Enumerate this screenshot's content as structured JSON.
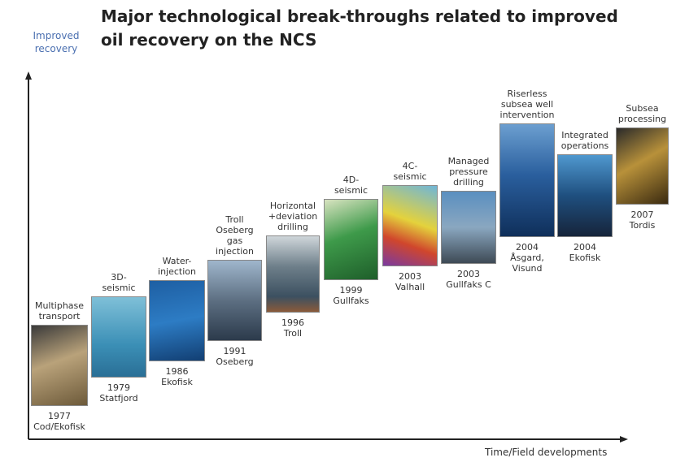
{
  "title": [
    "Major technological break-throughs related to improved",
    "oil recovery on the NCS"
  ],
  "y_axis_label": [
    "Improved",
    "recovery"
  ],
  "x_axis_label": "Time/Field developments",
  "steps": [
    {
      "top": [
        "Multiphase",
        "transport"
      ],
      "bottom": [
        "1977",
        "Cod/Ekofisk"
      ]
    },
    {
      "top": [
        "3D-",
        "seismic"
      ],
      "bottom": [
        "1979",
        "Statfjord"
      ]
    },
    {
      "top": [
        "Water-",
        "injection"
      ],
      "bottom": [
        "1986",
        "Ekofisk"
      ]
    },
    {
      "top": [
        "Troll",
        "Oseberg",
        "gas",
        "injection"
      ],
      "bottom": [
        "1991",
        "Oseberg"
      ]
    },
    {
      "top": [
        "Horizontal",
        "+deviation",
        "drilling"
      ],
      "bottom": [
        "1996",
        "Troll"
      ]
    },
    {
      "top": [
        "4D-",
        "seismic"
      ],
      "bottom": [
        "1999",
        "Gullfaks"
      ]
    },
    {
      "top": [
        "4C-",
        "seismic"
      ],
      "bottom": [
        "2003",
        "Valhall"
      ]
    },
    {
      "top": [
        "Managed",
        "pressure",
        "drilling"
      ],
      "bottom": [
        "2003",
        "Gullfaks C"
      ]
    },
    {
      "top": [
        "Riserless",
        "subsea well",
        "intervention"
      ],
      "bottom": [
        "2004",
        "Åsgard,",
        "Visund"
      ]
    },
    {
      "top": [
        "Integrated",
        "operations"
      ],
      "bottom": [
        "2004",
        "Ekofisk"
      ]
    },
    {
      "top": [
        "Subsea",
        "processing"
      ],
      "bottom": [
        "2007",
        "Tordis"
      ]
    }
  ]
}
